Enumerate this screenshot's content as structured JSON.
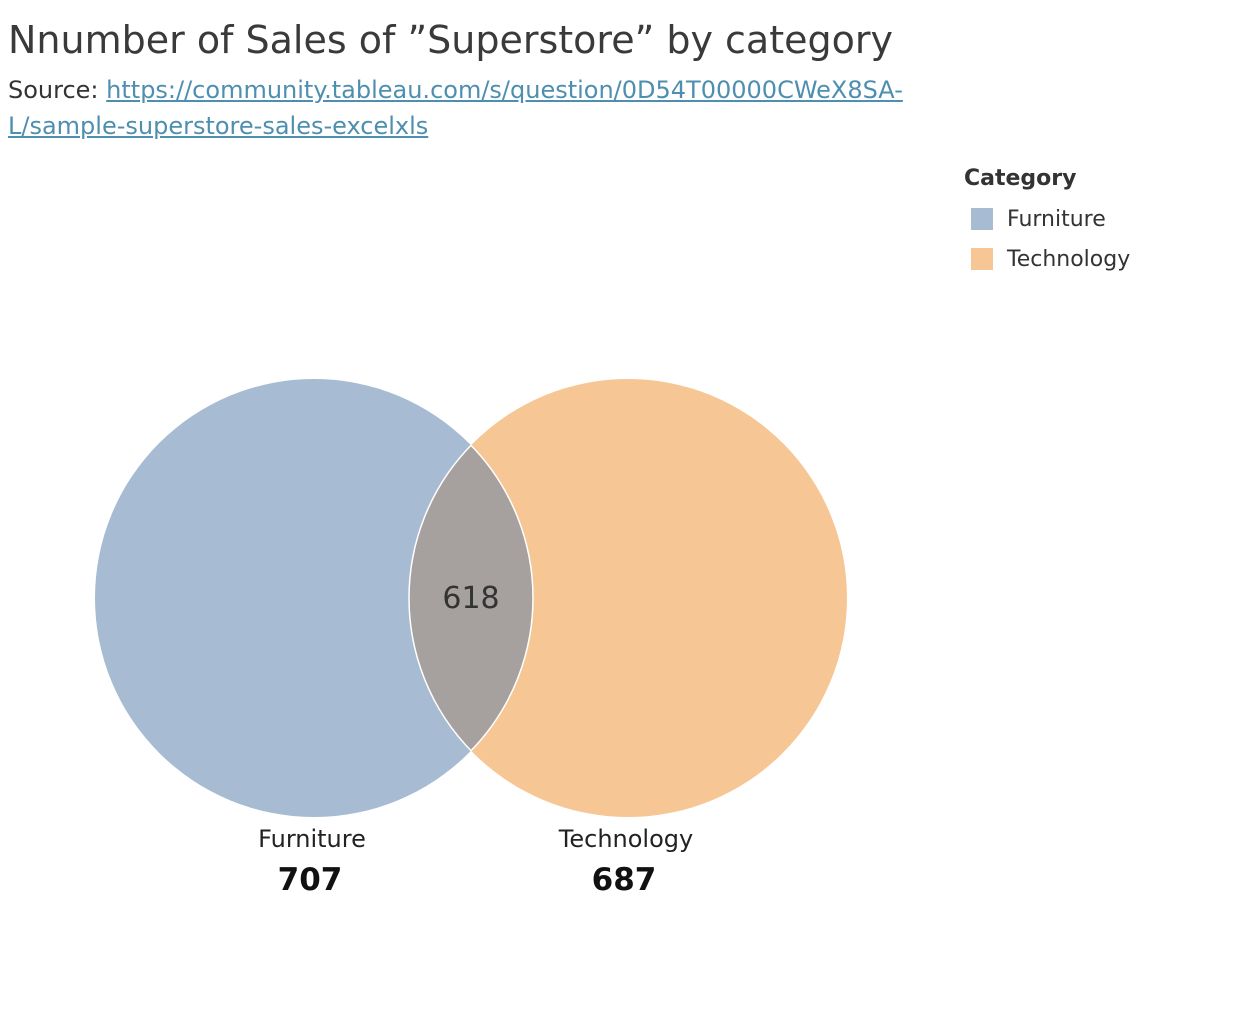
{
  "title": "Nnumber of Sales of ”Superstore” by category",
  "source": {
    "prefix": "Source: ",
    "link_text": "https://community.tableau.com/s/question/0D54T00000CWeX8SA-L/sample-superstore-sales-excelxls"
  },
  "legend": {
    "title": "Category",
    "items": [
      {
        "label": "Furniture",
        "color": "#a7bbd3"
      },
      {
        "label": "Technology",
        "color": "#f7c695"
      }
    ]
  },
  "chart_data": {
    "type": "venn",
    "sets": [
      {
        "name": "Furniture",
        "value": 707,
        "color": "#a7bbd3"
      },
      {
        "name": "Technology",
        "value": 687,
        "color": "#f7c695"
      }
    ],
    "intersection": {
      "value": 618,
      "color": "#a6a19e"
    }
  }
}
